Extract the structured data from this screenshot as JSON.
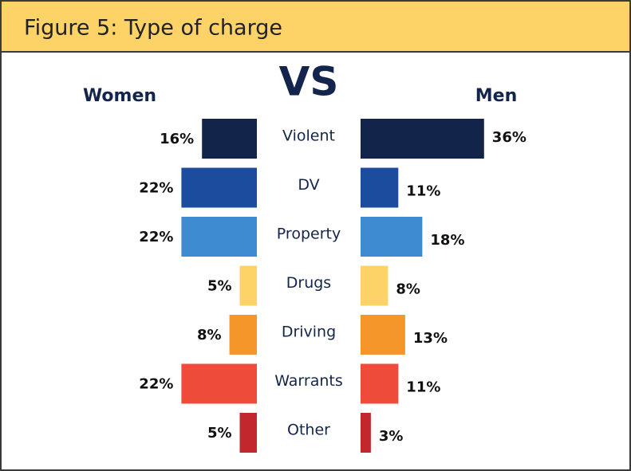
{
  "chart_data": {
    "type": "butterfly-bar",
    "title": "Figure 5: Type of charge",
    "vs_label": "VS",
    "categories": [
      "Violent",
      "DV",
      "Property",
      "Drugs",
      "Driving",
      "Warrants",
      "Other"
    ],
    "colors": [
      "#13244a",
      "#1b4c9e",
      "#3f8bd1",
      "#fdd267",
      "#f4962a",
      "#ef4b3a",
      "#c1272d"
    ],
    "series": [
      {
        "name": "Women",
        "values": [
          16,
          22,
          22,
          5,
          8,
          22,
          5
        ],
        "value_labels": [
          "16%",
          "22%",
          "22%",
          "5%",
          "8%",
          "22%",
          "5%"
        ]
      },
      {
        "name": "Men",
        "values": [
          36,
          11,
          18,
          8,
          13,
          11,
          3
        ],
        "value_labels": [
          "36%",
          "11%",
          "18%",
          "8%",
          "13%",
          "11%",
          "3%"
        ]
      }
    ]
  }
}
